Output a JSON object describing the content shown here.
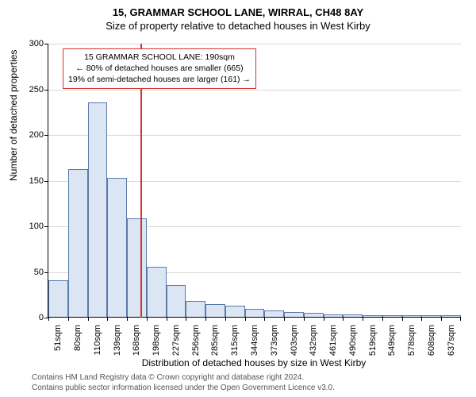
{
  "title_main": "15, GRAMMAR SCHOOL LANE, WIRRAL, CH48 8AY",
  "title_sub": "Size of property relative to detached houses in West Kirby",
  "ylabel": "Number of detached properties",
  "xlabel": "Distribution of detached houses by size in West Kirby",
  "chart": {
    "type": "bar",
    "ymax": 300,
    "ytick_step": 50,
    "grid_color": "#d9d9d9",
    "bar_fill": "#dbe5f4",
    "bar_stroke": "#5b7aa8",
    "ref_line_color": "#d43030",
    "ref_x_index": 5,
    "x_bins": [
      "51sqm",
      "80sqm",
      "110sqm",
      "139sqm",
      "168sqm",
      "198sqm",
      "227sqm",
      "256sqm",
      "285sqm",
      "315sqm",
      "344sqm",
      "373sqm",
      "403sqm",
      "432sqm",
      "461sqm",
      "490sqm",
      "519sqm",
      "549sqm",
      "578sqm",
      "608sqm",
      "637sqm"
    ],
    "values": [
      40,
      162,
      235,
      152,
      108,
      55,
      35,
      17,
      14,
      12,
      9,
      7,
      5,
      4,
      3,
      3,
      2,
      2,
      2,
      2,
      2
    ]
  },
  "annotation": {
    "border_color": "#d43030",
    "line1": "15 GRAMMAR SCHOOL LANE: 190sqm",
    "line2": "← 80% of detached houses are smaller (665)",
    "line3": "19% of semi-detached houses are larger (161) →"
  },
  "footer": {
    "line1": "Contains HM Land Registry data © Crown copyright and database right 2024.",
    "line2": "Contains public sector information licensed under the Open Government Licence v3.0."
  }
}
